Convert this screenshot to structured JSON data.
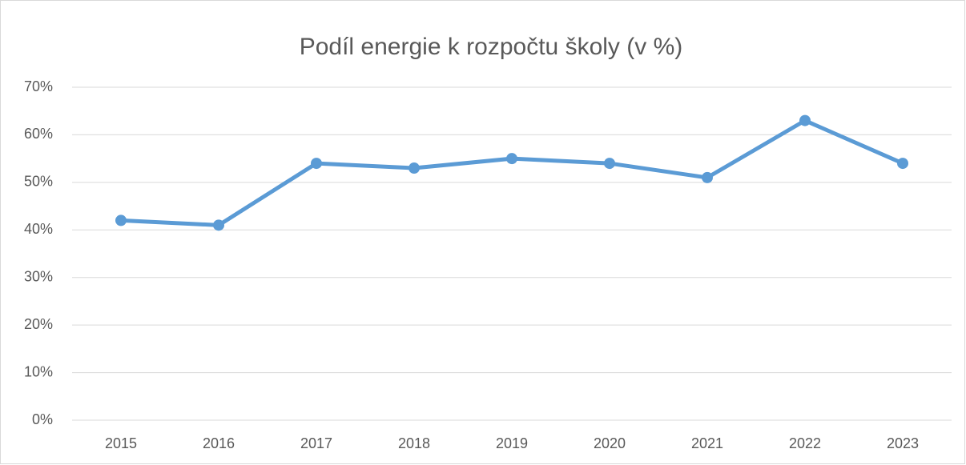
{
  "chart_data": {
    "type": "line",
    "title": "Podíl energie k rozpočtu školy (v %)",
    "categories": [
      "2015",
      "2016",
      "2017",
      "2018",
      "2019",
      "2020",
      "2021",
      "2022",
      "2023"
    ],
    "values": [
      42,
      41,
      54,
      53,
      55,
      54,
      51,
      63,
      54
    ],
    "color": "#5b9bd5",
    "ylim": [
      0,
      70
    ],
    "yticks": [
      {
        "value": 0,
        "label": "0%"
      },
      {
        "value": 10,
        "label": "10%"
      },
      {
        "value": 20,
        "label": "20%"
      },
      {
        "value": 30,
        "label": "30%"
      },
      {
        "value": 40,
        "label": "40%"
      },
      {
        "value": 50,
        "label": "50%"
      },
      {
        "value": 60,
        "label": "60%"
      },
      {
        "value": 70,
        "label": "70%"
      }
    ],
    "grid": true
  }
}
